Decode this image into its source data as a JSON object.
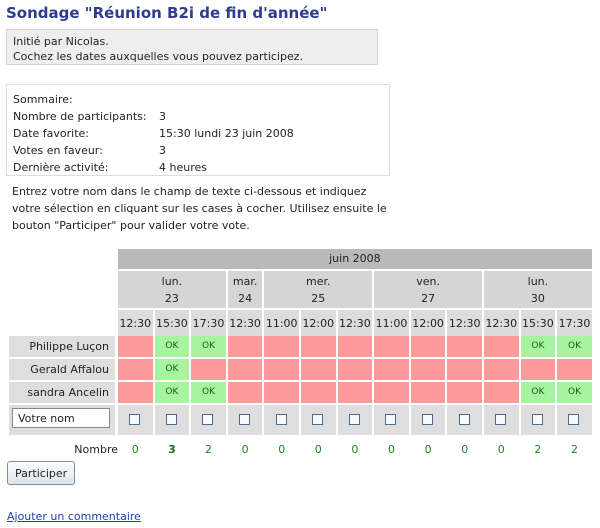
{
  "page": {
    "title": "Sondage \"Réunion B2i de fin d'année\"",
    "intro_line1": "Initié par Nicolas.",
    "intro_line2": "Cochez les dates auxquelles vous pouvez participez."
  },
  "summary": {
    "heading": "Sommaire:",
    "rows": [
      {
        "label": "Nombre de participants:",
        "value": "3"
      },
      {
        "label": "Date favorite:",
        "value": "15:30 lundi 23 juin 2008"
      },
      {
        "label": "Votes en faveur:",
        "value": "3"
      },
      {
        "label": "Dernière activité:",
        "value": "4 heures"
      }
    ]
  },
  "instructions": "Entrez votre nom dans le champ de texte ci-dessous et indiquez votre sélection en cliquant sur les cases à cocher. Utilisez ensuite le bouton \"Participer\" pour valider votre vote.",
  "poll": {
    "month": "juin 2008",
    "days": [
      {
        "dow": "lun.",
        "date": "23",
        "span": 3
      },
      {
        "dow": "mar.",
        "date": "24",
        "span": 1
      },
      {
        "dow": "mer.",
        "date": "25",
        "span": 3
      },
      {
        "dow": "ven.",
        "date": "27",
        "span": 3
      },
      {
        "dow": "lun.",
        "date": "30",
        "span": 3
      }
    ],
    "times": [
      "12:30",
      "15:30",
      "17:30",
      "12:30",
      "11:00",
      "12:00",
      "12:30",
      "11:00",
      "12:00",
      "12:30",
      "12:30",
      "15:30",
      "17:30"
    ],
    "ok_label": "OK",
    "participants": [
      {
        "name": "Philippe Luçon",
        "votes": [
          0,
          1,
          1,
          0,
          0,
          0,
          0,
          0,
          0,
          0,
          0,
          1,
          1
        ]
      },
      {
        "name": "Gerald Affalou",
        "votes": [
          0,
          1,
          0,
          0,
          0,
          0,
          0,
          0,
          0,
          0,
          0,
          0,
          0
        ]
      },
      {
        "name": "sandra Ancelin",
        "votes": [
          0,
          1,
          1,
          0,
          0,
          0,
          0,
          0,
          0,
          0,
          0,
          1,
          1
        ]
      }
    ],
    "name_input_value": "Votre nom",
    "totals_label": "Nombre",
    "totals": [
      "0",
      "3",
      "2",
      "0",
      "0",
      "0",
      "0",
      "0",
      "0",
      "0",
      "0",
      "2",
      "2"
    ],
    "best_index": 1,
    "colors": {
      "no": "#ff9a9a",
      "ok": "#a6f3a0",
      "header": "#d5d5d5"
    }
  },
  "actions": {
    "participate_label": "Participer",
    "comment_link": "Ajouter un commentaire"
  }
}
